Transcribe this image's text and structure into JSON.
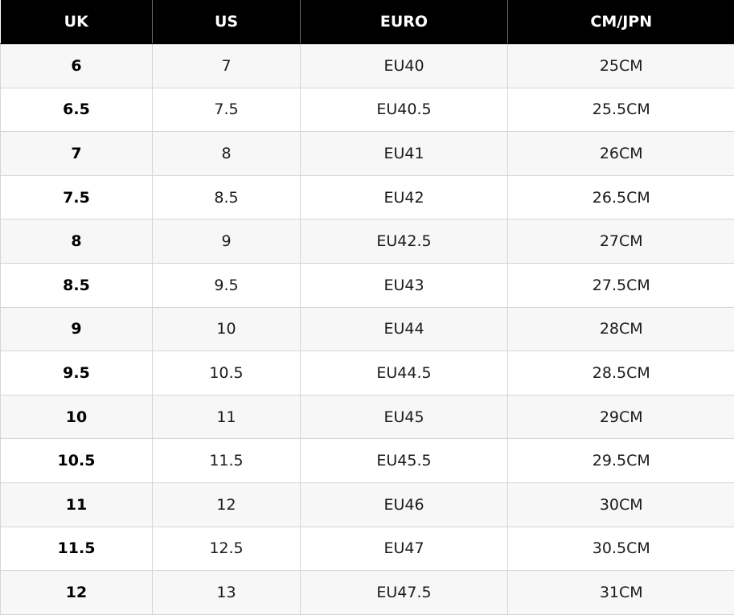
{
  "table": {
    "headers": [
      "UK",
      "US",
      "EURO",
      "CM/JPN"
    ],
    "rows": [
      [
        "6",
        "7",
        "EU40",
        "25CM"
      ],
      [
        "6.5",
        "7.5",
        "EU40.5",
        "25.5CM"
      ],
      [
        "7",
        "8",
        "EU41",
        "26CM"
      ],
      [
        "7.5",
        "8.5",
        "EU42",
        "26.5CM"
      ],
      [
        "8",
        "9",
        "EU42.5",
        "27CM"
      ],
      [
        "8.5",
        "9.5",
        "EU43",
        "27.5CM"
      ],
      [
        "9",
        "10",
        "EU44",
        "28CM"
      ],
      [
        "9.5",
        "10.5",
        "EU44.5",
        "28.5CM"
      ],
      [
        "10",
        "11",
        "EU45",
        "29CM"
      ],
      [
        "10.5",
        "11.5",
        "EU45.5",
        "29.5CM"
      ],
      [
        "11",
        "12",
        "EU46",
        "30CM"
      ],
      [
        "11.5",
        "12.5",
        "EU47",
        "30.5CM"
      ],
      [
        "12",
        "13",
        "EU47.5",
        "31CM"
      ]
    ]
  },
  "colors": {
    "header_bg": "#000000",
    "header_text": "#ffffff",
    "row_alt_bg": "#f7f7f7",
    "row_bg": "#ffffff",
    "grid_line": "#d6d6d6"
  }
}
